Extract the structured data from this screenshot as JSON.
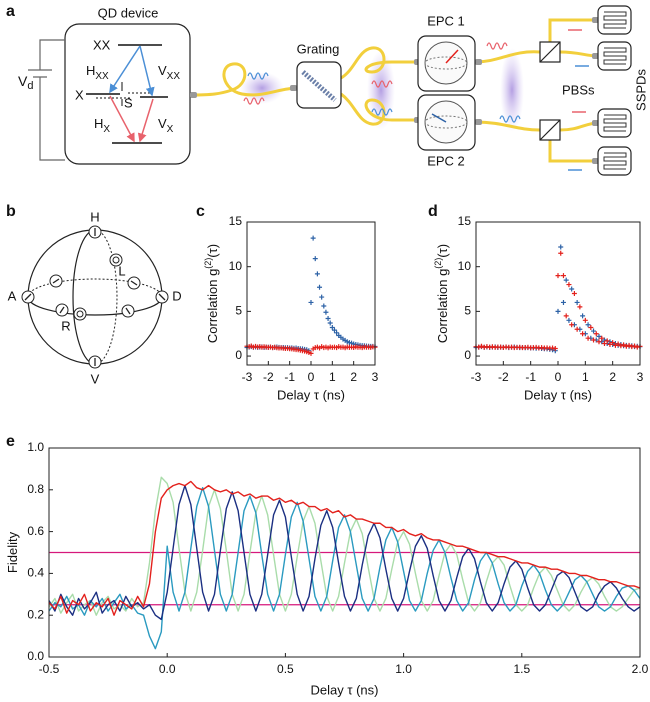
{
  "setup": {
    "panel_label": "a",
    "device": "QD device",
    "bias": {
      "main": "V",
      "sub": "d"
    },
    "levels": [
      "XX",
      "X",
      "S"
    ],
    "transitions": [
      {
        "main": "H",
        "sub": "XX"
      },
      {
        "main": "V",
        "sub": "XX"
      },
      {
        "main": "H",
        "sub": "X"
      },
      {
        "main": "V",
        "sub": "X"
      }
    ],
    "grating": "Grating",
    "epcs": [
      "EPC 1",
      "EPC 2"
    ],
    "pbs": "PBSs",
    "detectors": "SSPDs"
  },
  "sphere": {
    "panel_label": "b",
    "states": [
      "H",
      "V",
      "A",
      "D",
      "L",
      "R"
    ]
  },
  "chart_data": [
    {
      "type": "scatter",
      "panel_label": "c",
      "xlabel": "Delay τ (ns)",
      "ylabel": {
        "main": "Correlation g",
        "sup": "(2)",
        "tail": "(τ)"
      },
      "xlim": [
        -3,
        3
      ],
      "xticks": [
        -3,
        -2,
        -1,
        0,
        1,
        2,
        3
      ],
      "ylim": [
        -1,
        15
      ],
      "yticks": [
        0,
        5,
        10,
        15
      ],
      "x": [
        -3,
        -2.9,
        -2.8,
        -2.7,
        -2.6,
        -2.5,
        -2.4,
        -2.3,
        -2.2,
        -2.1,
        -2,
        -1.9,
        -1.8,
        -1.7,
        -1.6,
        -1.5,
        -1.4,
        -1.3,
        -1.2,
        -1.1,
        -1,
        -0.9,
        -0.8,
        -0.7,
        -0.6,
        -0.5,
        -0.4,
        -0.3,
        -0.2,
        -0.1,
        0,
        0.1,
        0.2,
        0.3,
        0.4,
        0.5,
        0.6,
        0.7,
        0.8,
        0.9,
        1,
        1.1,
        1.2,
        1.3,
        1.4,
        1.5,
        1.6,
        1.7,
        1.8,
        1.9,
        2,
        2.1,
        2.2,
        2.3,
        2.4,
        2.5,
        2.6,
        2.7,
        2.8,
        2.9,
        3
      ],
      "series": [
        {
          "color": "#2d62a6",
          "values": [
            0.95,
            1.0,
            1.05,
            0.98,
            1.02,
            0.97,
            1.0,
            1.03,
            0.96,
            1.0,
            0.98,
            1.01,
            0.95,
            0.99,
            1.02,
            0.97,
            0.94,
            0.96,
            0.93,
            0.95,
            0.9,
            0.92,
            0.88,
            0.9,
            0.85,
            0.82,
            0.8,
            0.75,
            0.7,
            0.6,
            6.0,
            13.2,
            10.9,
            9.2,
            7.7,
            6.6,
            5.6,
            4.9,
            4.2,
            3.7,
            3.2,
            2.9,
            2.6,
            2.3,
            2.1,
            1.9,
            1.75,
            1.6,
            1.5,
            1.45,
            1.35,
            1.3,
            1.25,
            1.2,
            1.17,
            1.15,
            1.12,
            1.1,
            1.09,
            1.08,
            1.07
          ]
        },
        {
          "color": "#e3211c",
          "values": [
            1.1,
            1.05,
            1.12,
            1.0,
            1.08,
            1.02,
            1.06,
            0.98,
            1.04,
            1.0,
            0.97,
            1.0,
            0.95,
            0.98,
            0.93,
            0.9,
            0.92,
            0.88,
            0.85,
            0.86,
            0.82,
            0.8,
            0.76,
            0.72,
            0.7,
            0.65,
            0.6,
            0.55,
            0.48,
            0.4,
            0.3,
            0.8,
            0.95,
            1.0,
            0.9,
            1.05,
            0.95,
            1.0,
            0.92,
            1.02,
            0.97,
            1.0,
            0.95,
            1.05,
            0.98,
            1.0,
            0.93,
            1.02,
            0.97,
            1.0,
            0.96,
            1.03,
            0.98,
            1.0,
            0.95,
            1.02,
            0.99,
            1.0,
            0.97,
            1.03,
            1.0
          ]
        }
      ]
    },
    {
      "type": "scatter",
      "panel_label": "d",
      "xlabel": "Delay τ (ns)",
      "ylabel": {
        "main": "Correlation g",
        "sup": "(2)",
        "tail": "(τ)"
      },
      "xlim": [
        -3,
        3
      ],
      "xticks": [
        -3,
        -2,
        -1,
        0,
        1,
        2,
        3
      ],
      "ylim": [
        -1,
        15
      ],
      "yticks": [
        0,
        5,
        10,
        15
      ],
      "x": [
        -3,
        -2.9,
        -2.8,
        -2.7,
        -2.6,
        -2.5,
        -2.4,
        -2.3,
        -2.2,
        -2.1,
        -2,
        -1.9,
        -1.8,
        -1.7,
        -1.6,
        -1.5,
        -1.4,
        -1.3,
        -1.2,
        -1.1,
        -1,
        -0.9,
        -0.8,
        -0.7,
        -0.6,
        -0.5,
        -0.4,
        -0.3,
        -0.2,
        -0.1,
        0,
        0.1,
        0.2,
        0.3,
        0.4,
        0.5,
        0.6,
        0.7,
        0.8,
        0.9,
        1,
        1.1,
        1.2,
        1.3,
        1.4,
        1.5,
        1.6,
        1.7,
        1.8,
        1.9,
        2,
        2.1,
        2.2,
        2.3,
        2.4,
        2.5,
        2.6,
        2.7,
        2.8,
        2.9,
        3
      ],
      "series": [
        {
          "color": "#2d62a6",
          "values": [
            0.95,
            1.0,
            1.05,
            0.98,
            1.02,
            0.97,
            1.0,
            1.03,
            0.96,
            1.0,
            0.98,
            1.01,
            0.95,
            0.99,
            1.02,
            0.97,
            0.94,
            0.96,
            0.93,
            0.95,
            0.9,
            0.92,
            0.88,
            0.9,
            0.85,
            0.82,
            0.8,
            0.75,
            0.7,
            0.6,
            5.0,
            12.2,
            6.0,
            8.5,
            4.0,
            7.5,
            3.5,
            6.0,
            3.0,
            4.5,
            2.5,
            3.5,
            2.0,
            2.8,
            1.8,
            2.2,
            1.6,
            1.8,
            1.4,
            1.6,
            1.3,
            1.4,
            1.2,
            1.3,
            1.15,
            1.2,
            1.1,
            1.15,
            1.05,
            1.1,
            1.05
          ]
        },
        {
          "color": "#e3211c",
          "values": [
            1.05,
            1.0,
            1.1,
            0.98,
            1.06,
            1.0,
            1.04,
            0.97,
            1.02,
            1.0,
            0.96,
            1.01,
            0.98,
            1.0,
            0.95,
            0.97,
            0.99,
            0.94,
            0.96,
            0.98,
            0.93,
            0.95,
            0.97,
            0.92,
            0.94,
            0.9,
            0.92,
            0.88,
            0.9,
            0.85,
            9.0,
            11.5,
            9.0,
            4.5,
            8.0,
            3.5,
            7.0,
            3.0,
            5.5,
            2.5,
            4.0,
            2.0,
            3.2,
            1.8,
            2.5,
            1.6,
            2.0,
            1.4,
            1.7,
            1.3,
            1.5,
            1.2,
            1.35,
            1.15,
            1.25,
            1.1,
            1.2,
            1.05,
            1.12,
            1.0,
            1.08
          ]
        }
      ]
    },
    {
      "type": "line",
      "panel_label": "e",
      "xlabel": "Delay τ (ns)",
      "ylabel": {
        "main": "Fidelity"
      },
      "xlim": [
        -0.5,
        2
      ],
      "xticks": [
        -0.5,
        {
          "value": 0,
          "label": "0.0"
        },
        0.5,
        {
          "value": 1,
          "label": "1.0"
        },
        1.5,
        {
          "value": 2,
          "label": "2.0"
        }
      ],
      "ylim": [
        0,
        1
      ],
      "yticks": [
        {
          "value": 0,
          "label": "0.0"
        },
        0.2,
        0.4,
        0.6,
        0.8,
        {
          "value": 1,
          "label": "1.0"
        }
      ],
      "hlines": [
        0.5,
        0.25
      ],
      "hline_color": "#d6187c",
      "x": [
        -0.5,
        -0.475,
        -0.45,
        -0.425,
        -0.4,
        -0.375,
        -0.35,
        -0.325,
        -0.3,
        -0.275,
        -0.25,
        -0.225,
        -0.2,
        -0.175,
        -0.15,
        -0.125,
        -0.1,
        -0.075,
        -0.05,
        -0.025,
        0,
        0.025,
        0.05,
        0.075,
        0.1,
        0.125,
        0.15,
        0.175,
        0.2,
        0.225,
        0.25,
        0.275,
        0.3,
        0.325,
        0.35,
        0.375,
        0.4,
        0.425,
        0.45,
        0.475,
        0.5,
        0.525,
        0.55,
        0.575,
        0.6,
        0.625,
        0.65,
        0.675,
        0.7,
        0.725,
        0.75,
        0.775,
        0.8,
        0.825,
        0.85,
        0.875,
        0.9,
        0.925,
        0.95,
        0.975,
        1,
        1.025,
        1.05,
        1.075,
        1.1,
        1.125,
        1.15,
        1.175,
        1.2,
        1.225,
        1.25,
        1.275,
        1.3,
        1.325,
        1.35,
        1.375,
        1.4,
        1.425,
        1.45,
        1.475,
        1.5,
        1.525,
        1.55,
        1.575,
        1.6,
        1.625,
        1.65,
        1.675,
        1.7,
        1.725,
        1.75,
        1.775,
        1.8,
        1.825,
        1.85,
        1.875,
        1.9,
        1.925,
        1.95,
        1.975,
        2
      ],
      "series": [
        {
          "color": "#a9dcaa",
          "values": [
            0.24,
            0.28,
            0.21,
            0.26,
            0.3,
            0.22,
            0.25,
            0.27,
            0.2,
            0.26,
            0.29,
            0.23,
            0.25,
            0.22,
            0.28,
            0.24,
            0.26,
            0.45,
            0.7,
            0.86,
            0.83,
            0.74,
            0.52,
            0.31,
            0.22,
            0.31,
            0.51,
            0.72,
            0.8,
            0.71,
            0.51,
            0.3,
            0.22,
            0.3,
            0.5,
            0.69,
            0.77,
            0.68,
            0.49,
            0.3,
            0.22,
            0.3,
            0.48,
            0.65,
            0.72,
            0.64,
            0.46,
            0.29,
            0.22,
            0.29,
            0.45,
            0.6,
            0.66,
            0.59,
            0.43,
            0.28,
            0.22,
            0.28,
            0.42,
            0.55,
            0.6,
            0.54,
            0.4,
            0.27,
            0.22,
            0.27,
            0.39,
            0.5,
            0.54,
            0.49,
            0.37,
            0.26,
            0.22,
            0.26,
            0.36,
            0.45,
            0.48,
            0.44,
            0.34,
            0.25,
            0.22,
            0.25,
            0.33,
            0.4,
            0.43,
            0.39,
            0.32,
            0.25,
            0.22,
            0.25,
            0.31,
            0.36,
            0.38,
            0.35,
            0.29,
            0.24,
            0.22,
            0.24,
            0.28,
            0.32,
            0.33
          ]
        },
        {
          "color": "#2a9ac0",
          "values": [
            0.22,
            0.26,
            0.24,
            0.29,
            0.23,
            0.25,
            0.2,
            0.27,
            0.24,
            0.28,
            0.22,
            0.26,
            0.3,
            0.23,
            0.25,
            0.21,
            0.2,
            0.1,
            0.04,
            0.12,
            0.53,
            0.31,
            0.22,
            0.31,
            0.52,
            0.72,
            0.81,
            0.72,
            0.51,
            0.3,
            0.22,
            0.3,
            0.5,
            0.7,
            0.77,
            0.69,
            0.49,
            0.3,
            0.22,
            0.3,
            0.49,
            0.67,
            0.74,
            0.65,
            0.47,
            0.29,
            0.22,
            0.29,
            0.46,
            0.62,
            0.68,
            0.6,
            0.44,
            0.28,
            0.22,
            0.28,
            0.43,
            0.56,
            0.62,
            0.55,
            0.41,
            0.27,
            0.22,
            0.27,
            0.4,
            0.51,
            0.56,
            0.5,
            0.38,
            0.27,
            0.22,
            0.26,
            0.37,
            0.46,
            0.5,
            0.45,
            0.35,
            0.26,
            0.22,
            0.25,
            0.34,
            0.41,
            0.44,
            0.4,
            0.32,
            0.25,
            0.22,
            0.25,
            0.31,
            0.37,
            0.39,
            0.36,
            0.3,
            0.24,
            0.22,
            0.24,
            0.29,
            0.33,
            0.34,
            0.32,
            0.28
          ]
        },
        {
          "color": "#1b2f82",
          "values": [
            0.27,
            0.22,
            0.3,
            0.24,
            0.2,
            0.28,
            0.23,
            0.26,
            0.31,
            0.21,
            0.25,
            0.27,
            0.22,
            0.29,
            0.24,
            0.26,
            0.23,
            0.25,
            0.2,
            0.18,
            0.31,
            0.52,
            0.73,
            0.82,
            0.73,
            0.52,
            0.31,
            0.22,
            0.3,
            0.51,
            0.71,
            0.79,
            0.7,
            0.5,
            0.3,
            0.22,
            0.3,
            0.49,
            0.68,
            0.75,
            0.67,
            0.48,
            0.3,
            0.22,
            0.29,
            0.47,
            0.63,
            0.7,
            0.62,
            0.45,
            0.29,
            0.22,
            0.28,
            0.44,
            0.58,
            0.64,
            0.57,
            0.42,
            0.28,
            0.22,
            0.28,
            0.41,
            0.53,
            0.58,
            0.52,
            0.39,
            0.27,
            0.22,
            0.27,
            0.38,
            0.48,
            0.52,
            0.47,
            0.36,
            0.26,
            0.22,
            0.26,
            0.35,
            0.43,
            0.46,
            0.42,
            0.33,
            0.25,
            0.22,
            0.25,
            0.32,
            0.39,
            0.41,
            0.38,
            0.31,
            0.24,
            0.22,
            0.24,
            0.3,
            0.34,
            0.36,
            0.33,
            0.28,
            0.24,
            0.22,
            0.24
          ]
        },
        {
          "color": "#e3211c",
          "values": [
            0.26,
            0.23,
            0.29,
            0.21,
            0.27,
            0.25,
            0.3,
            0.22,
            0.26,
            0.24,
            0.28,
            0.2,
            0.27,
            0.25,
            0.23,
            0.29,
            0.24,
            0.35,
            0.6,
            0.76,
            0.8,
            0.82,
            0.83,
            0.82,
            0.84,
            0.81,
            0.8,
            0.82,
            0.8,
            0.79,
            0.8,
            0.78,
            0.79,
            0.77,
            0.78,
            0.76,
            0.77,
            0.77,
            0.75,
            0.76,
            0.74,
            0.75,
            0.73,
            0.74,
            0.72,
            0.72,
            0.7,
            0.71,
            0.69,
            0.7,
            0.67,
            0.68,
            0.66,
            0.66,
            0.65,
            0.64,
            0.64,
            0.62,
            0.62,
            0.6,
            0.61,
            0.59,
            0.58,
            0.59,
            0.57,
            0.56,
            0.56,
            0.55,
            0.54,
            0.53,
            0.53,
            0.52,
            0.51,
            0.5,
            0.5,
            0.49,
            0.48,
            0.48,
            0.47,
            0.46,
            0.45,
            0.45,
            0.44,
            0.43,
            0.43,
            0.42,
            0.42,
            0.41,
            0.4,
            0.4,
            0.39,
            0.39,
            0.38,
            0.37,
            0.37,
            0.36,
            0.36,
            0.35,
            0.34,
            0.34,
            0.33
          ]
        }
      ]
    }
  ]
}
